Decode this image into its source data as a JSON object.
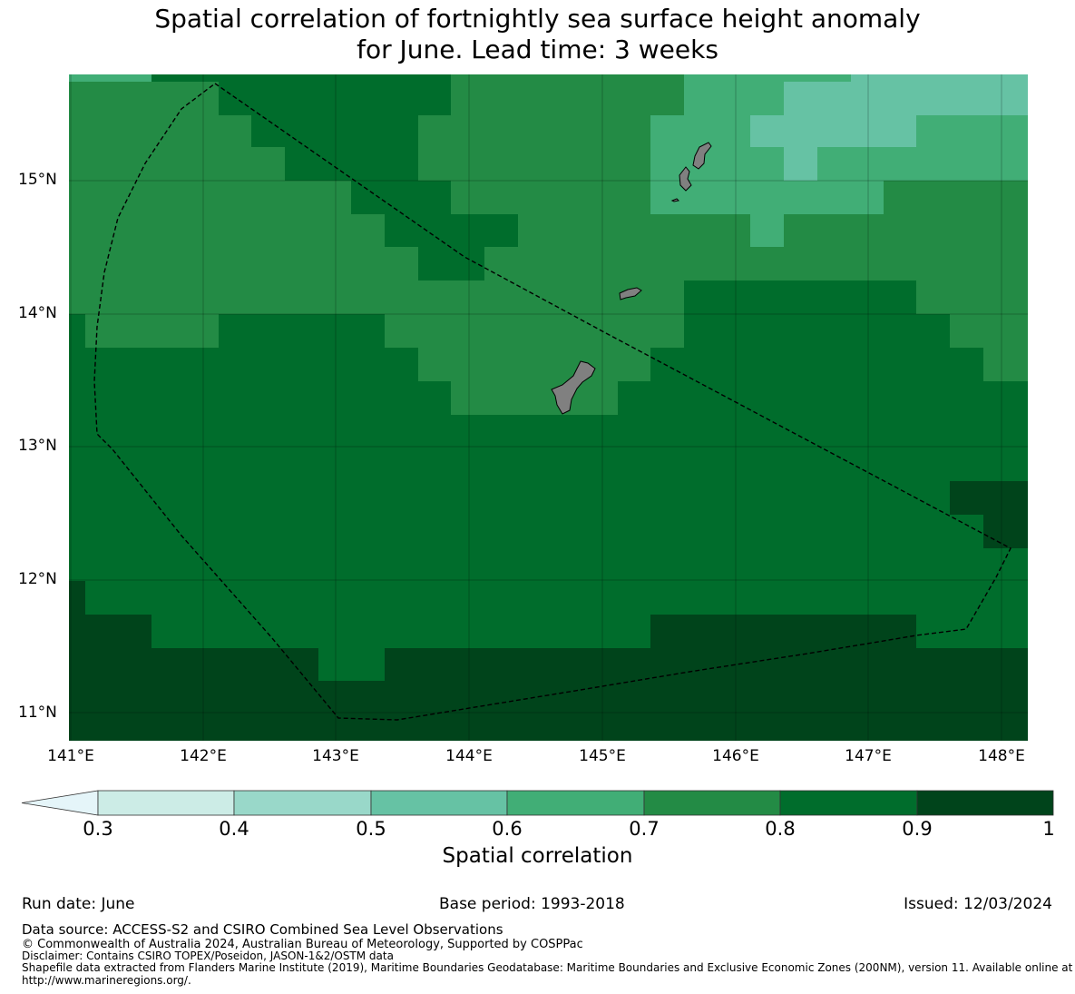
{
  "title": {
    "line1": "Spatial correlation of fortnightly sea surface height anomaly",
    "line2": "for June. Lead time: 3 weeks"
  },
  "map": {
    "lon_range": [
      141.0,
      148.2
    ],
    "lat_range": [
      10.8,
      15.8
    ],
    "lat_labels": [
      "11°N",
      "12°N",
      "13°N",
      "14°N",
      "15°N"
    ],
    "lon_labels": [
      "141°E",
      "142°E",
      "143°E",
      "144°E",
      "145°E",
      "146°E",
      "147°E",
      "148°E"
    ],
    "land_color": "#808080",
    "eez_line_style": "dashed black",
    "islands": [
      "Guam",
      "Rota",
      "Tinian",
      "Saipan"
    ]
  },
  "colorbar": {
    "label": "Spatial correlation",
    "ticks": [
      "0.3",
      "0.4",
      "0.5",
      "0.6",
      "0.7",
      "0.8",
      "0.9",
      "1"
    ],
    "bins": [
      {
        "range": "<0.3",
        "color": "#e5f5f9"
      },
      {
        "range": "0.3-0.4",
        "color": "#ccece6"
      },
      {
        "range": "0.4-0.5",
        "color": "#99d8c9"
      },
      {
        "range": "0.5-0.6",
        "color": "#66c2a4"
      },
      {
        "range": "0.6-0.7",
        "color": "#41ae76"
      },
      {
        "range": "0.7-0.8",
        "color": "#238b45"
      },
      {
        "range": "0.8-0.9",
        "color": "#006d2c"
      },
      {
        "range": "0.9-1",
        "color": "#00441b"
      }
    ]
  },
  "footer": {
    "run_date": "Run date: June",
    "base_period": "Base period: 1993-2018",
    "issued": "Issued: 12/03/2024",
    "data_source": "Data source: ACCESS-S2 and CSIRO Combined Sea Level Observations",
    "copyright": "© Commonwealth of Australia 2024, Australian Bureau of Meteorology, Supported by COSPPac",
    "disclaimer": "Disclaimer: Contains CSIRO TOPEX/Poseidon, JASON-1&2/OSTM data",
    "shapefile": "Shapefile data extracted from Flanders Marine Institute (2019), Maritime Boundaries Geodatabase: Maritime Boundaries and Exclusive Economic Zones (200NM), version 11. Available online at http://www.marineregions.org/."
  }
}
